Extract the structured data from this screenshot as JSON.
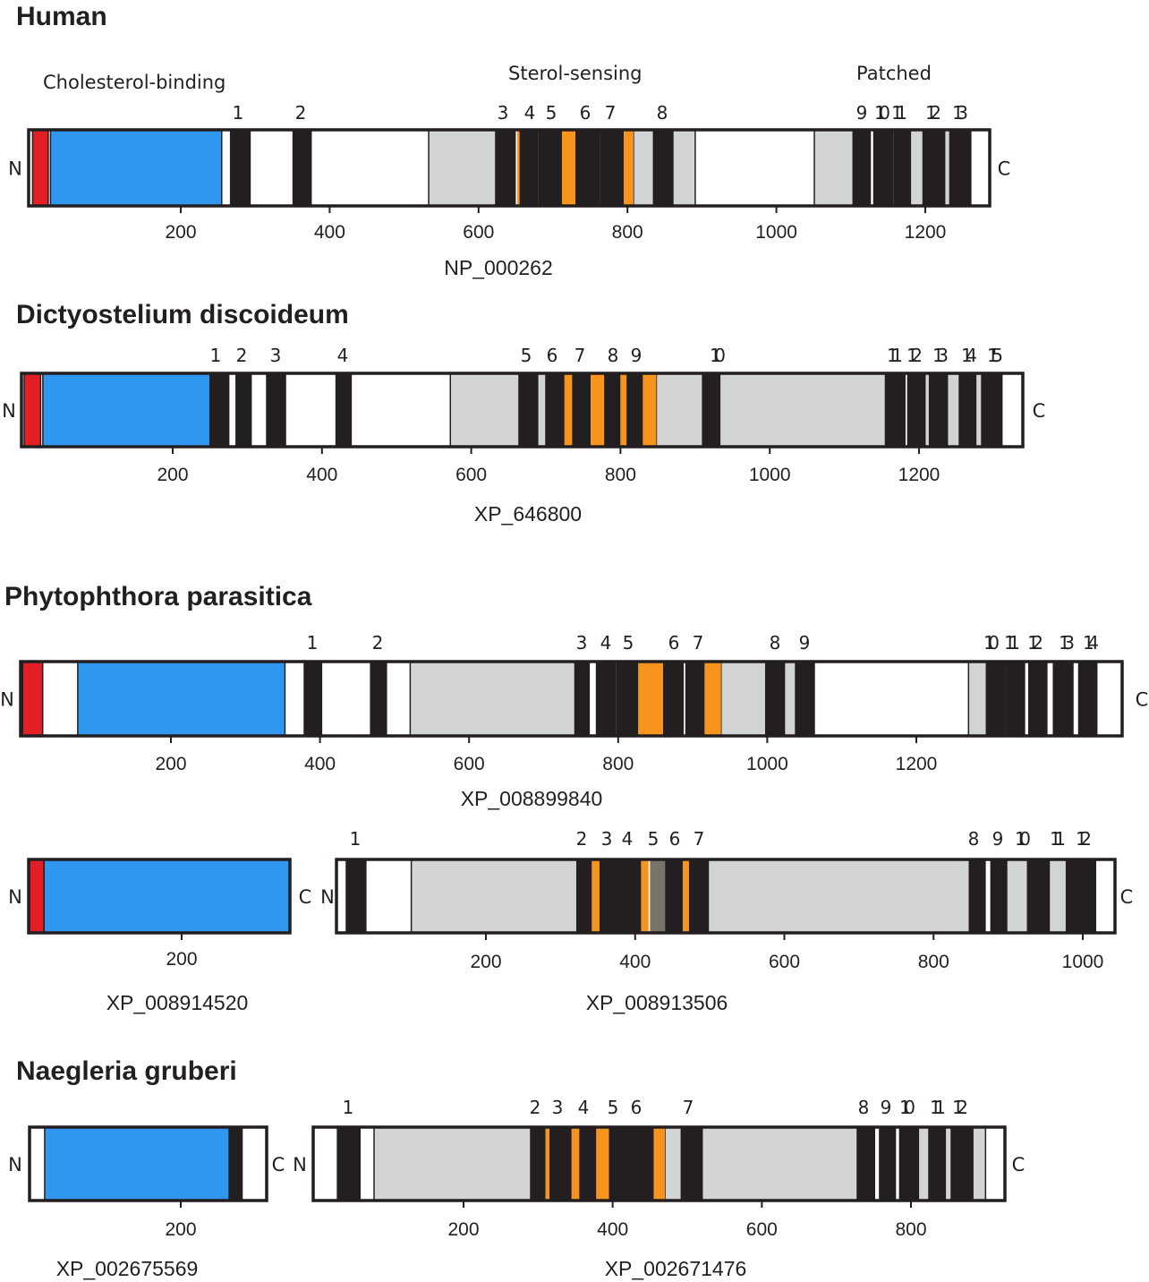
{
  "colors": {
    "signal_peptide": "#e31e24",
    "cholesterol_binding": "#2f97f0",
    "transmembrane": "#231f20",
    "sterol_sensing_tm": "#f7941d",
    "extracellular_loop": "#d1d3d4",
    "background": "#ffffff",
    "outline": "#231f20",
    "dim_tm": "#7a7468"
  },
  "n_terminus_label": "N",
  "c_terminus_label": "C",
  "region_labels": {
    "cholesterol_binding": "Cholesterol-binding",
    "sterol_sensing": "Sterol-sensing",
    "patched": "Patched"
  },
  "species": [
    {
      "name": "Human",
      "proteins": [
        {
          "accession": "NP_000262",
          "length": 1278,
          "ticks": [
            "200",
            "400",
            "600",
            "800",
            "1000",
            "1200"
          ],
          "tm_labels": [
            "1",
            "2",
            "3",
            "4",
            "5",
            "6",
            "7",
            "8",
            "9",
            "10",
            "11",
            "12",
            "13"
          ],
          "domains": [
            {
              "type": "signal_peptide",
              "start": 1,
              "end": 22
            },
            {
              "type": "cholesterol_binding",
              "start": 25,
              "end": 255
            },
            {
              "type": "transmembrane",
              "start": 266,
              "end": 294
            },
            {
              "type": "transmembrane",
              "start": 350,
              "end": 376
            },
            {
              "type": "extracellular_loop",
              "start": 533,
              "end": 623
            },
            {
              "type": "transmembrane",
              "start": 623,
              "end": 650
            },
            {
              "type": "transmembrane",
              "start": 655,
              "end": 680
            },
            {
              "type": "sterol_sensing_tm",
              "start": 652,
              "end": 655
            },
            {
              "type": "transmembrane",
              "start": 680,
              "end": 712
            },
            {
              "type": "sterol_sensing_tm",
              "start": 712,
              "end": 730
            },
            {
              "type": "transmembrane",
              "start": 730,
              "end": 763
            },
            {
              "type": "transmembrane",
              "start": 763,
              "end": 795
            },
            {
              "type": "sterol_sensing_tm",
              "start": 795,
              "end": 808
            },
            {
              "type": "extracellular_loop",
              "start": 808,
              "end": 835
            },
            {
              "type": "transmembrane",
              "start": 835,
              "end": 861
            },
            {
              "type": "extracellular_loop",
              "start": 861,
              "end": 891
            },
            {
              "type": "extracellular_loop",
              "start": 1051,
              "end": 1103
            },
            {
              "type": "transmembrane",
              "start": 1103,
              "end": 1127
            },
            {
              "type": "transmembrane",
              "start": 1130,
              "end": 1157
            },
            {
              "type": "transmembrane",
              "start": 1157,
              "end": 1180
            },
            {
              "type": "extracellular_loop",
              "start": 1180,
              "end": 1197
            },
            {
              "type": "transmembrane",
              "start": 1197,
              "end": 1226
            },
            {
              "type": "extracellular_loop",
              "start": 1226,
              "end": 1233
            },
            {
              "type": "transmembrane",
              "start": 1233,
              "end": 1262
            }
          ]
        }
      ]
    },
    {
      "name": "Dictyostelium discoideum",
      "proteins": [
        {
          "accession": "XP_646800",
          "length": 1340,
          "ticks": [
            "200",
            "400",
            "600",
            "800",
            "1000",
            "1200"
          ],
          "tm_labels": [
            "1",
            "2",
            "3",
            "4",
            "5",
            "6",
            "7",
            "8",
            "9",
            "10",
            "11",
            "12",
            "13",
            "14",
            "15"
          ],
          "domains": [
            {
              "type": "signal_peptide",
              "start": 1,
              "end": 23
            },
            {
              "type": "cholesterol_binding",
              "start": 26,
              "end": 250
            },
            {
              "type": "transmembrane",
              "start": 250,
              "end": 276
            },
            {
              "type": "transmembrane",
              "start": 284,
              "end": 306
            },
            {
              "type": "transmembrane",
              "start": 325,
              "end": 352
            },
            {
              "type": "transmembrane",
              "start": 418,
              "end": 440
            },
            {
              "type": "extracellular_loop",
              "start": 572,
              "end": 664
            },
            {
              "type": "transmembrane",
              "start": 664,
              "end": 689
            },
            {
              "type": "extracellular_loop",
              "start": 689,
              "end": 700
            },
            {
              "type": "transmembrane",
              "start": 700,
              "end": 725
            },
            {
              "type": "sterol_sensing_tm",
              "start": 725,
              "end": 735
            },
            {
              "type": "transmembrane",
              "start": 735,
              "end": 760
            },
            {
              "type": "sterol_sensing_tm",
              "start": 760,
              "end": 778
            },
            {
              "type": "transmembrane",
              "start": 778,
              "end": 800
            },
            {
              "type": "sterol_sensing_tm",
              "start": 800,
              "end": 808
            },
            {
              "type": "transmembrane",
              "start": 808,
              "end": 830
            },
            {
              "type": "sterol_sensing_tm",
              "start": 830,
              "end": 848
            },
            {
              "type": "extracellular_loop",
              "start": 848,
              "end": 910
            },
            {
              "type": "transmembrane",
              "start": 910,
              "end": 933
            },
            {
              "type": "extracellular_loop",
              "start": 933,
              "end": 1155
            },
            {
              "type": "transmembrane",
              "start": 1155,
              "end": 1182
            },
            {
              "type": "transmembrane",
              "start": 1184,
              "end": 1208
            },
            {
              "type": "extracellular_loop",
              "start": 1208,
              "end": 1214
            },
            {
              "type": "transmembrane",
              "start": 1214,
              "end": 1238
            },
            {
              "type": "extracellular_loop",
              "start": 1238,
              "end": 1254
            },
            {
              "type": "transmembrane",
              "start": 1254,
              "end": 1276
            },
            {
              "type": "extracellular_loop",
              "start": 1276,
              "end": 1284
            },
            {
              "type": "transmembrane",
              "start": 1284,
              "end": 1312
            }
          ]
        }
      ]
    },
    {
      "name": "Phytophthora parasitica",
      "proteins": [
        {
          "accession": "XP_008899840",
          "length": 1475,
          "ticks": [
            "200",
            "400",
            "600",
            "800",
            "1000",
            "1200"
          ],
          "tm_labels": [
            "1",
            "2",
            "3",
            "4",
            "5",
            "6",
            "7",
            "8",
            "9",
            "10",
            "11",
            "12",
            "13",
            "14"
          ],
          "domains": [
            {
              "type": "signal_peptide",
              "start": 1,
              "end": 28
            },
            {
              "type": "cholesterol_binding",
              "start": 75,
              "end": 353
            },
            {
              "type": "transmembrane",
              "start": 378,
              "end": 403
            },
            {
              "type": "transmembrane",
              "start": 467,
              "end": 490
            },
            {
              "type": "extracellular_loop",
              "start": 521,
              "end": 742
            },
            {
              "type": "transmembrane",
              "start": 742,
              "end": 762
            },
            {
              "type": "transmembrane",
              "start": 770,
              "end": 797
            },
            {
              "type": "transmembrane",
              "start": 797,
              "end": 827
            },
            {
              "type": "sterol_sensing_tm",
              "start": 827,
              "end": 860
            },
            {
              "type": "transmembrane",
              "start": 860,
              "end": 888
            },
            {
              "type": "transmembrane",
              "start": 890,
              "end": 916
            },
            {
              "type": "sterol_sensing_tm",
              "start": 916,
              "end": 938
            },
            {
              "type": "extracellular_loop",
              "start": 938,
              "end": 998
            },
            {
              "type": "transmembrane",
              "start": 998,
              "end": 1023
            },
            {
              "type": "extracellular_loop",
              "start": 1023,
              "end": 1038
            },
            {
              "type": "transmembrane",
              "start": 1038,
              "end": 1064
            },
            {
              "type": "extracellular_loop",
              "start": 1270,
              "end": 1294
            },
            {
              "type": "transmembrane",
              "start": 1294,
              "end": 1320
            },
            {
              "type": "transmembrane",
              "start": 1320,
              "end": 1346
            },
            {
              "type": "transmembrane",
              "start": 1350,
              "end": 1376
            },
            {
              "type": "transmembrane",
              "start": 1383,
              "end": 1411
            },
            {
              "type": "transmembrane",
              "start": 1417,
              "end": 1443
            }
          ]
        },
        {
          "accession": "XP_008914520",
          "length": 365,
          "ticks": [
            "200"
          ],
          "tm_labels": [],
          "domains": [
            {
              "type": "signal_peptide",
              "start": 1,
              "end": 20
            },
            {
              "type": "cholesterol_binding",
              "start": 20,
              "end": 365
            }
          ]
        },
        {
          "accession": "XP_008913506",
          "length": 1050,
          "ticks": [
            "200",
            "400",
            "600",
            "800",
            "1000"
          ],
          "tm_labels": [
            "1",
            "2",
            "3",
            "4",
            "5",
            "6",
            "7",
            "8",
            "9",
            "10",
            "11",
            "12"
          ],
          "domains": [
            {
              "type": "transmembrane",
              "start": 12,
              "end": 40
            },
            {
              "type": "extracellular_loop",
              "start": 100,
              "end": 322
            },
            {
              "type": "transmembrane",
              "start": 322,
              "end": 342
            },
            {
              "type": "sterol_sensing_tm",
              "start": 342,
              "end": 352
            },
            {
              "type": "transmembrane",
              "start": 352,
              "end": 408
            },
            {
              "type": "sterol_sensing_tm",
              "start": 408,
              "end": 418
            },
            {
              "type": "dim_tm",
              "start": 420,
              "end": 440
            },
            {
              "type": "transmembrane",
              "start": 440,
              "end": 464
            },
            {
              "type": "sterol_sensing_tm",
              "start": 464,
              "end": 472
            },
            {
              "type": "transmembrane",
              "start": 472,
              "end": 498
            },
            {
              "type": "extracellular_loop",
              "start": 498,
              "end": 848
            },
            {
              "type": "transmembrane",
              "start": 848,
              "end": 870
            },
            {
              "type": "transmembrane",
              "start": 876,
              "end": 898
            },
            {
              "type": "extracellular_loop",
              "start": 898,
              "end": 926
            },
            {
              "type": "transmembrane",
              "start": 926,
              "end": 955
            },
            {
              "type": "extracellular_loop",
              "start": 955,
              "end": 978
            },
            {
              "type": "transmembrane",
              "start": 978,
              "end": 1018
            }
          ]
        }
      ]
    },
    {
      "name": "Naegleria gruberi",
      "proteins": [
        {
          "accession": "XP_002675569",
          "length": 320,
          "ticks": [
            "200"
          ],
          "tm_labels": [],
          "domains": [
            {
              "type": "cholesterol_binding",
              "start": 20,
              "end": 264
            },
            {
              "type": "transmembrane",
              "start": 264,
              "end": 282
            }
          ]
        },
        {
          "accession": "XP_002671476",
          "length": 930,
          "ticks": [
            "200",
            "400",
            "600",
            "800"
          ],
          "tm_labels": [
            "1",
            "2",
            "3",
            "4",
            "5",
            "6",
            "7",
            "8",
            "9",
            "10",
            "11",
            "12"
          ],
          "domains": [
            {
              "type": "transmembrane",
              "start": 30,
              "end": 62
            },
            {
              "type": "extracellular_loop",
              "start": 80,
              "end": 290
            },
            {
              "type": "transmembrane",
              "start": 290,
              "end": 310
            },
            {
              "type": "sterol_sensing_tm",
              "start": 310,
              "end": 315
            },
            {
              "type": "transmembrane",
              "start": 315,
              "end": 345
            },
            {
              "type": "sterol_sensing_tm",
              "start": 345,
              "end": 355
            },
            {
              "type": "transmembrane",
              "start": 355,
              "end": 378
            },
            {
              "type": "sterol_sensing_tm",
              "start": 378,
              "end": 395
            },
            {
              "type": "transmembrane",
              "start": 395,
              "end": 455
            },
            {
              "type": "sterol_sensing_tm",
              "start": 455,
              "end": 470
            },
            {
              "type": "extracellular_loop",
              "start": 470,
              "end": 492
            },
            {
              "type": "transmembrane",
              "start": 492,
              "end": 520
            },
            {
              "type": "extracellular_loop",
              "start": 520,
              "end": 728
            },
            {
              "type": "transmembrane",
              "start": 728,
              "end": 752
            },
            {
              "type": "transmembrane",
              "start": 757,
              "end": 780
            },
            {
              "type": "transmembrane",
              "start": 784,
              "end": 810
            },
            {
              "type": "extracellular_loop",
              "start": 810,
              "end": 824
            },
            {
              "type": "transmembrane",
              "start": 824,
              "end": 846
            },
            {
              "type": "extracellular_loop",
              "start": 846,
              "end": 854
            },
            {
              "type": "transmembrane",
              "start": 854,
              "end": 883
            },
            {
              "type": "extracellular_loop",
              "start": 883,
              "end": 900
            }
          ]
        }
      ]
    }
  ]
}
